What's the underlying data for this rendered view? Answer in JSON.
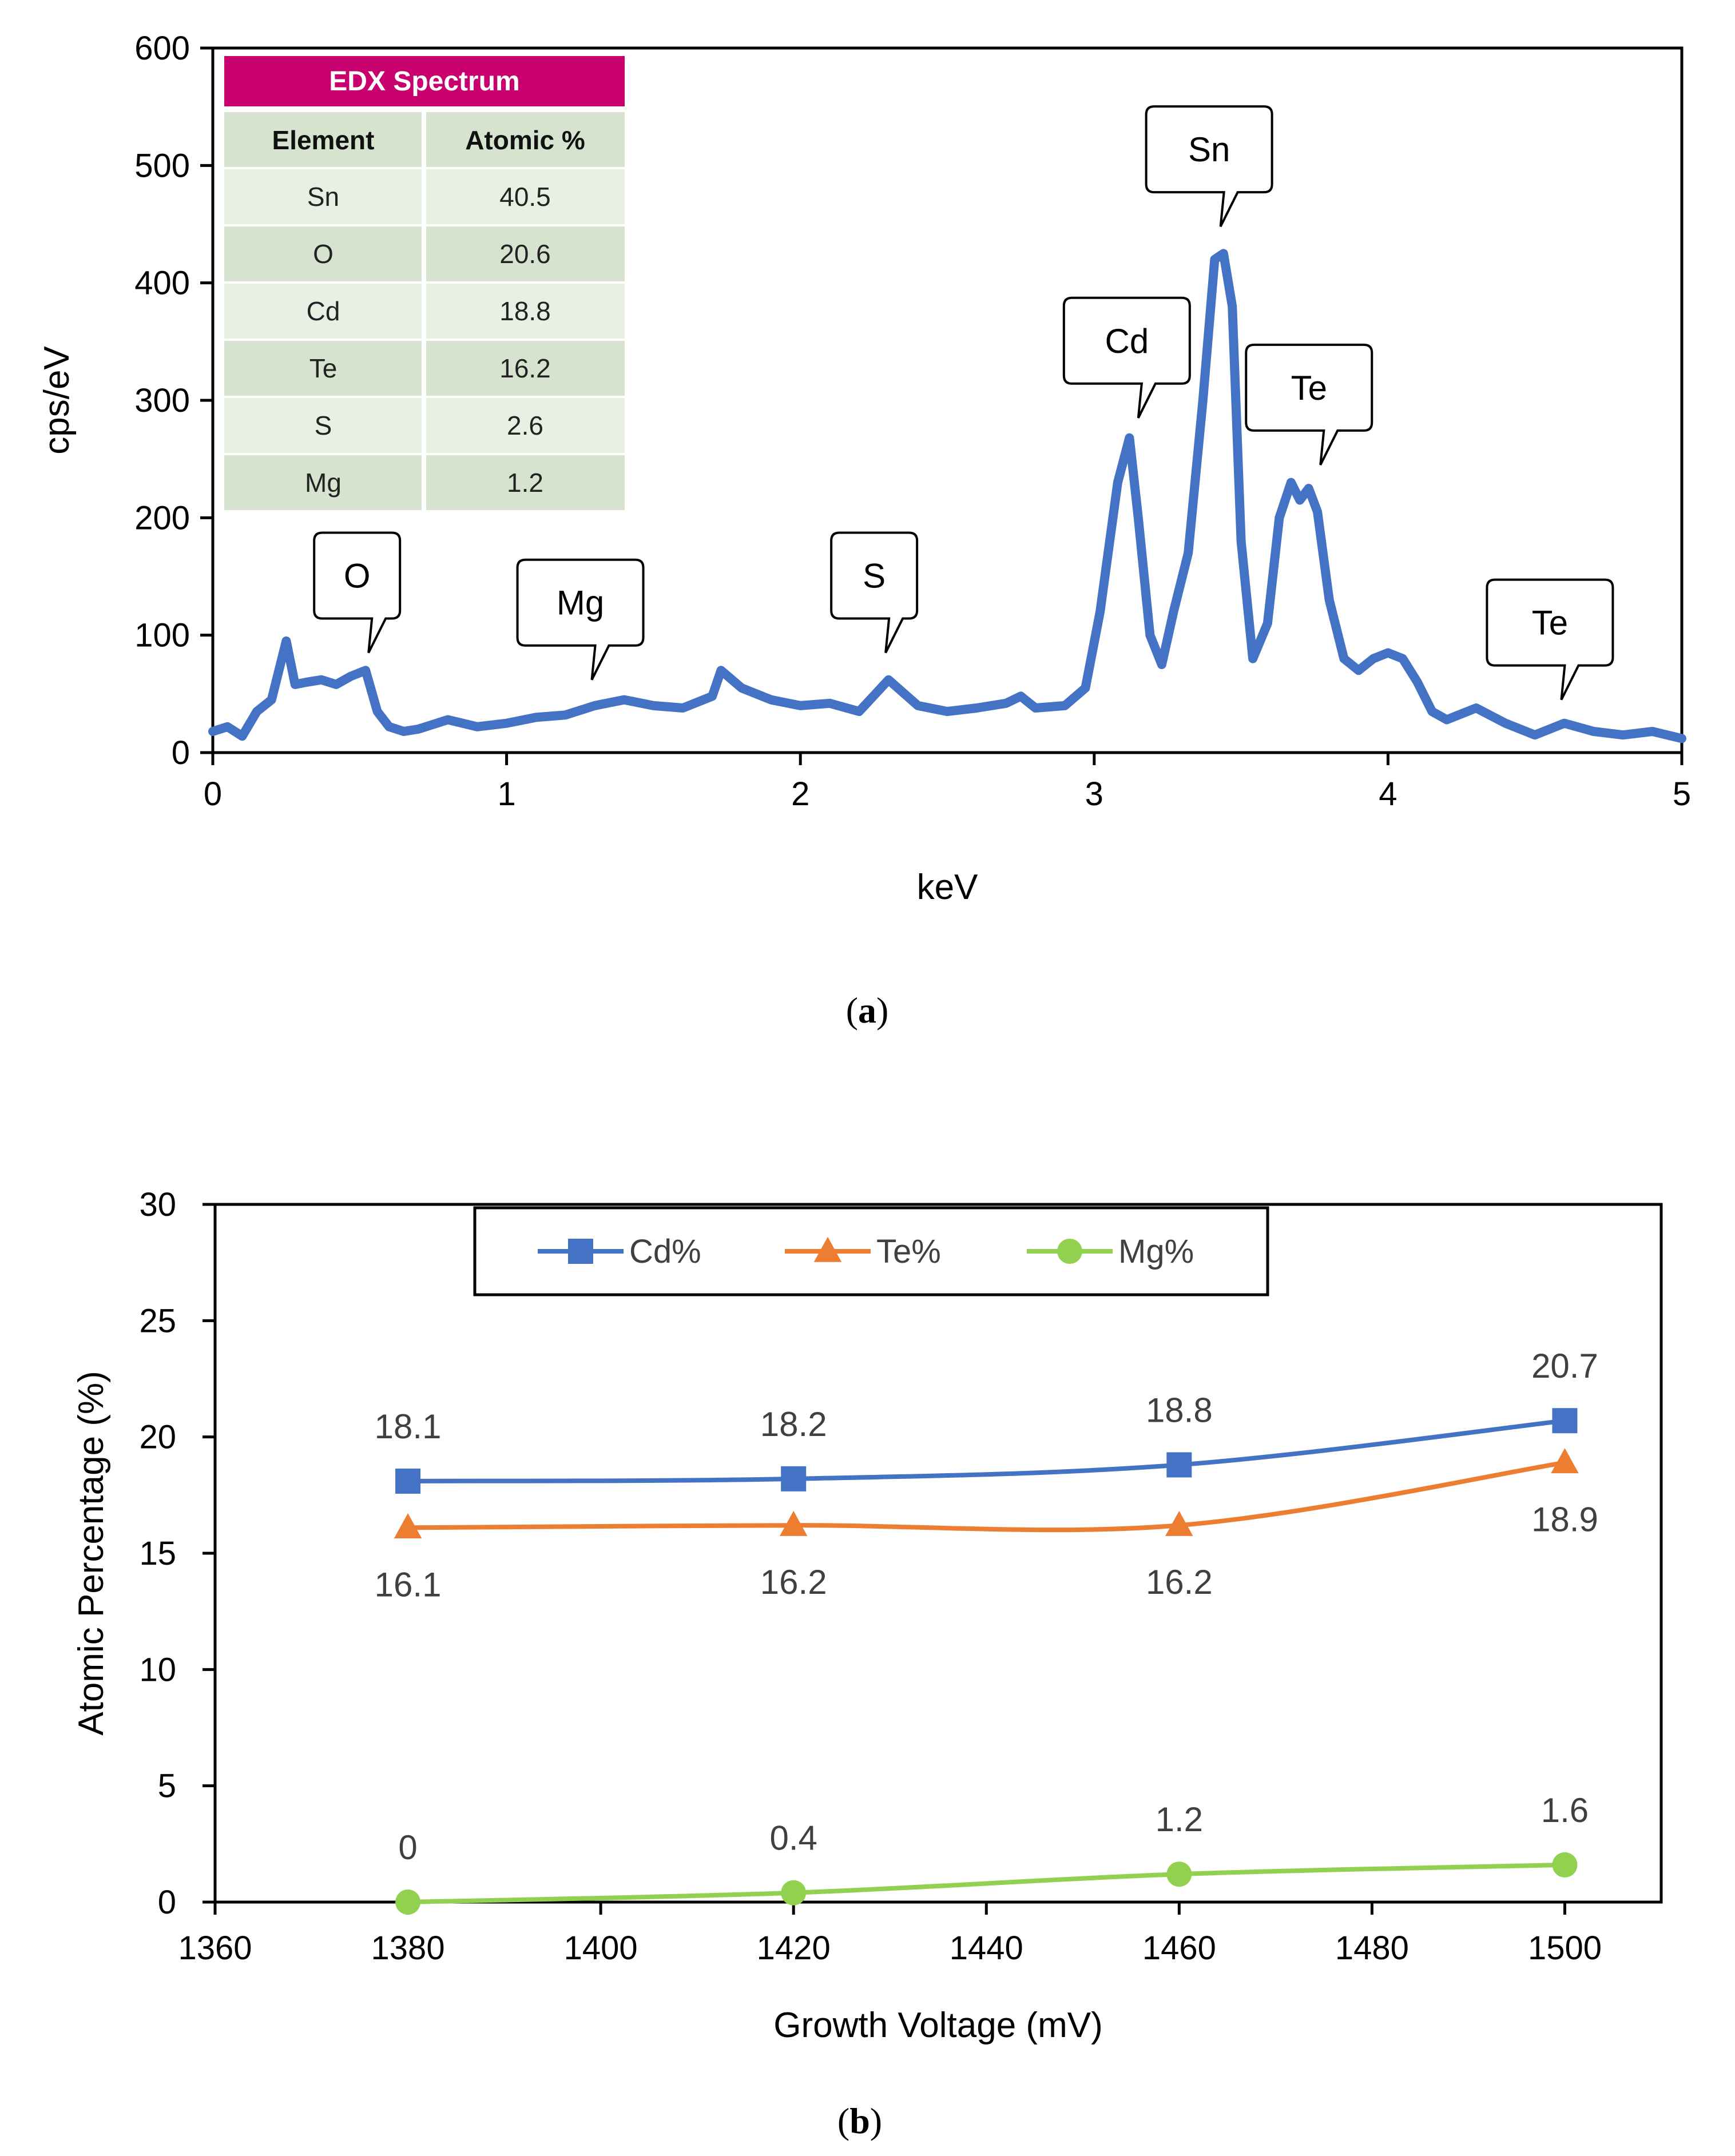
{
  "colors": {
    "spectrum": "#4472C4",
    "cd": "#4472C4",
    "te": "#ED7D31",
    "mg": "#92D050",
    "table_header": "#C8006E",
    "table_row_a": "#E8F0E4",
    "table_row_b": "#D6E3CE"
  },
  "chart_data": [
    {
      "type": "line",
      "panel_label": "a",
      "xlabel": "keV",
      "ylabel": "cps/eV",
      "xlim": [
        0,
        5
      ],
      "ylim": [
        0,
        600
      ],
      "xticks": [
        "0",
        "1",
        "2",
        "3",
        "4",
        "5"
      ],
      "yticks": [
        "0",
        "100",
        "200",
        "300",
        "400",
        "500",
        "600"
      ],
      "spectrum": {
        "keV": [
          0.0,
          0.05,
          0.1,
          0.15,
          0.2,
          0.25,
          0.28,
          0.32,
          0.37,
          0.42,
          0.47,
          0.52,
          0.56,
          0.6,
          0.65,
          0.7,
          0.8,
          0.9,
          1.0,
          1.1,
          1.2,
          1.3,
          1.4,
          1.5,
          1.6,
          1.7,
          1.73,
          1.8,
          1.9,
          2.0,
          2.1,
          2.2,
          2.3,
          2.4,
          2.5,
          2.6,
          2.7,
          2.75,
          2.8,
          2.9,
          2.97,
          3.02,
          3.08,
          3.12,
          3.15,
          3.19,
          3.23,
          3.27,
          3.32,
          3.37,
          3.41,
          3.44,
          3.47,
          3.5,
          3.54,
          3.59,
          3.63,
          3.67,
          3.7,
          3.73,
          3.76,
          3.8,
          3.85,
          3.9,
          3.95,
          4.0,
          4.05,
          4.1,
          4.15,
          4.2,
          4.3,
          4.4,
          4.5,
          4.6,
          4.7,
          4.8,
          4.9,
          5.0
        ],
        "cps": [
          18,
          22,
          14,
          35,
          45,
          95,
          58,
          60,
          62,
          58,
          65,
          70,
          35,
          22,
          18,
          20,
          28,
          22,
          25,
          30,
          32,
          40,
          45,
          40,
          38,
          48,
          70,
          55,
          45,
          40,
          42,
          35,
          62,
          40,
          35,
          38,
          42,
          48,
          38,
          40,
          55,
          120,
          230,
          268,
          200,
          100,
          75,
          120,
          170,
          300,
          420,
          425,
          380,
          180,
          80,
          110,
          200,
          230,
          215,
          225,
          205,
          130,
          80,
          70,
          80,
          85,
          80,
          60,
          35,
          28,
          38,
          25,
          15,
          25,
          18,
          15,
          18,
          12
        ]
      },
      "callouts": [
        {
          "label": "O",
          "keV": 0.53,
          "cps": 85
        },
        {
          "label": "Mg",
          "keV": 1.29,
          "cps": 62
        },
        {
          "label": "S",
          "keV": 2.29,
          "cps": 85
        },
        {
          "label": "Cd",
          "keV": 3.15,
          "cps": 285
        },
        {
          "label": "Sn",
          "keV": 3.43,
          "cps": 448
        },
        {
          "label": "Te",
          "keV": 3.77,
          "cps": 245
        },
        {
          "label": "Te",
          "keV": 4.59,
          "cps": 45
        }
      ],
      "inset_table": {
        "title": "EDX Spectrum",
        "headers": [
          "Element",
          "Atomic %"
        ],
        "rows": [
          [
            "Sn",
            "40.5"
          ],
          [
            "O",
            "20.6"
          ],
          [
            "Cd",
            "18.8"
          ],
          [
            "Te",
            "16.2"
          ],
          [
            "S",
            "2.6"
          ],
          [
            "Mg",
            "1.2"
          ]
        ]
      }
    },
    {
      "type": "line",
      "panel_label": "b",
      "xlabel": "Growth Voltage (mV)",
      "ylabel": "Atomic Percentage (%)",
      "xlim": [
        1360,
        1510
      ],
      "ylim": [
        0,
        30
      ],
      "xticks": [
        "1360",
        "1380",
        "1400",
        "1420",
        "1440",
        "1460",
        "1480",
        "1500"
      ],
      "yticks": [
        "0",
        "5",
        "10",
        "15",
        "20",
        "25",
        "30"
      ],
      "x": [
        1380,
        1420,
        1460,
        1500
      ],
      "series": [
        {
          "name": "Cd%",
          "values": [
            18.1,
            18.2,
            18.8,
            20.7
          ],
          "labels": [
            "18.1",
            "18.2",
            "18.8",
            "20.7"
          ],
          "marker": "square",
          "label_position": "above"
        },
        {
          "name": "Te%",
          "values": [
            16.1,
            16.2,
            16.2,
            18.9
          ],
          "labels": [
            "16.1",
            "16.2",
            "16.2",
            "18.9"
          ],
          "marker": "triangle",
          "label_position": "below"
        },
        {
          "name": "Mg%",
          "values": [
            0,
            0.4,
            1.2,
            1.6
          ],
          "labels": [
            "0",
            "0.4",
            "1.2",
            "1.6"
          ],
          "marker": "circle",
          "label_position": "above"
        }
      ],
      "legend": "top"
    }
  ]
}
